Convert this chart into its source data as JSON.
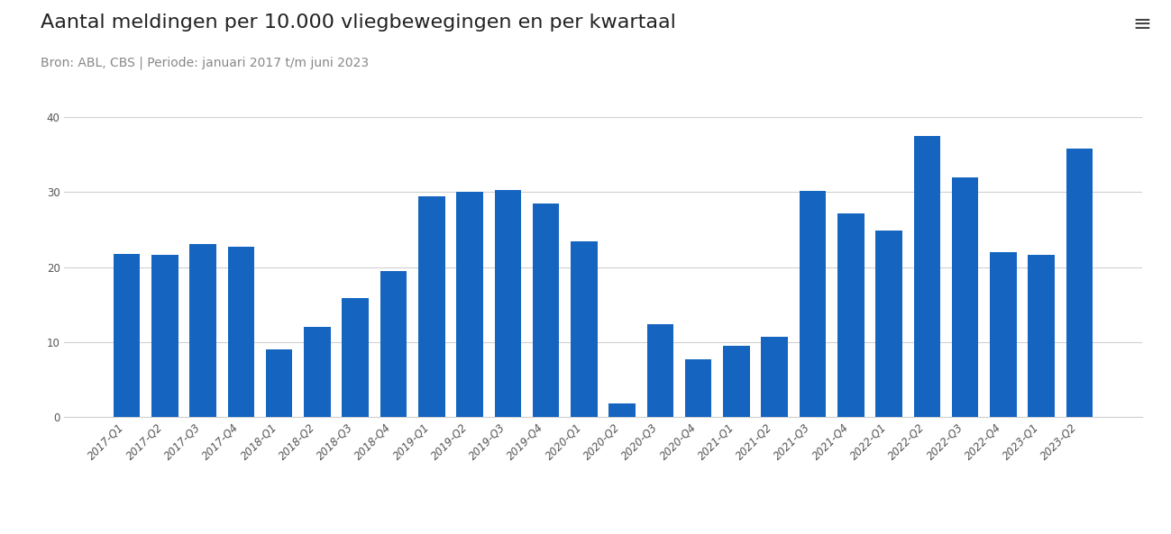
{
  "title": "Aantal meldingen per 10.000 vliegbewegingen en per kwartaal",
  "subtitle": "Bron: ABL, CBS | Periode: januari 2017 t/m juni 2023",
  "categories": [
    "2017-Q1",
    "2017-Q2",
    "2017-Q3",
    "2017-Q4",
    "2018-Q1",
    "2018-Q2",
    "2018-Q3",
    "2018-Q4",
    "2019-Q1",
    "2019-Q2",
    "2019-Q3",
    "2019-Q4",
    "2020-Q1",
    "2020-Q2",
    "2020-Q3",
    "2020-Q4",
    "2021-Q1",
    "2021-Q2",
    "2021-Q3",
    "2021-Q4",
    "2022-Q1",
    "2022-Q2",
    "2022-Q3",
    "2022-Q4",
    "2023-Q1",
    "2023-Q2"
  ],
  "values": [
    21.8,
    21.6,
    23.1,
    22.7,
    9.0,
    12.0,
    15.8,
    19.4,
    29.5,
    30.0,
    30.3,
    28.5,
    23.4,
    1.8,
    12.4,
    7.7,
    9.5,
    10.7,
    30.2,
    27.2,
    24.9,
    37.5,
    32.0,
    22.0,
    21.6,
    35.8
  ],
  "bar_color": "#1565c0",
  "background_color": "#ffffff",
  "ylim": [
    0,
    40
  ],
  "yticks": [
    0,
    10,
    20,
    30,
    40
  ],
  "grid_color": "#d0d0d0",
  "title_fontsize": 16,
  "subtitle_fontsize": 10,
  "tick_fontsize": 8.5,
  "tick_color": "#555555",
  "title_color": "#222222",
  "subtitle_color": "#888888",
  "hamburger_color": "#444444"
}
